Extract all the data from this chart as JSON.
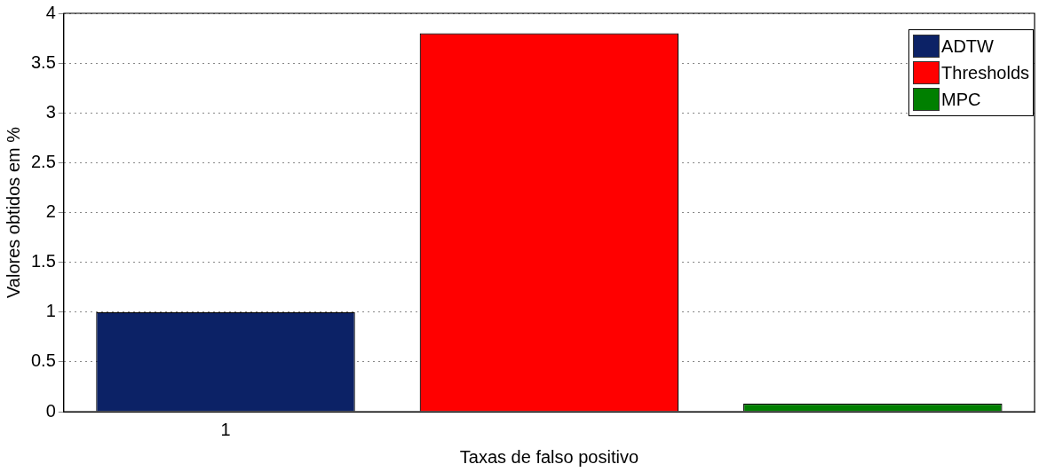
{
  "chart_data": {
    "type": "bar",
    "xlabel": "Taxas de falso positivo",
    "ylabel": "Valores obtidos em %",
    "categories": [
      "1",
      null,
      null
    ],
    "series": [
      {
        "name": "ADTW",
        "color": "#0c2266",
        "values": [
          1,
          null,
          null
        ]
      },
      {
        "name": "Thresholds",
        "color": "#ff0000",
        "values": [
          null,
          3.8,
          null
        ]
      },
      {
        "name": "MPC",
        "color": "#007f00",
        "values": [
          null,
          null,
          0.08
        ]
      }
    ],
    "ylim": [
      0,
      4
    ],
    "yticks": [
      0,
      {
        "value": 0.5,
        "label": "0.5"
      },
      1,
      {
        "value": 1.5,
        "label": "1.5"
      },
      2,
      {
        "value": 2.5,
        "label": "2.5"
      },
      3,
      {
        "value": 3.5,
        "label": "3.5"
      },
      4
    ],
    "grid": "y",
    "legend": "top right"
  }
}
